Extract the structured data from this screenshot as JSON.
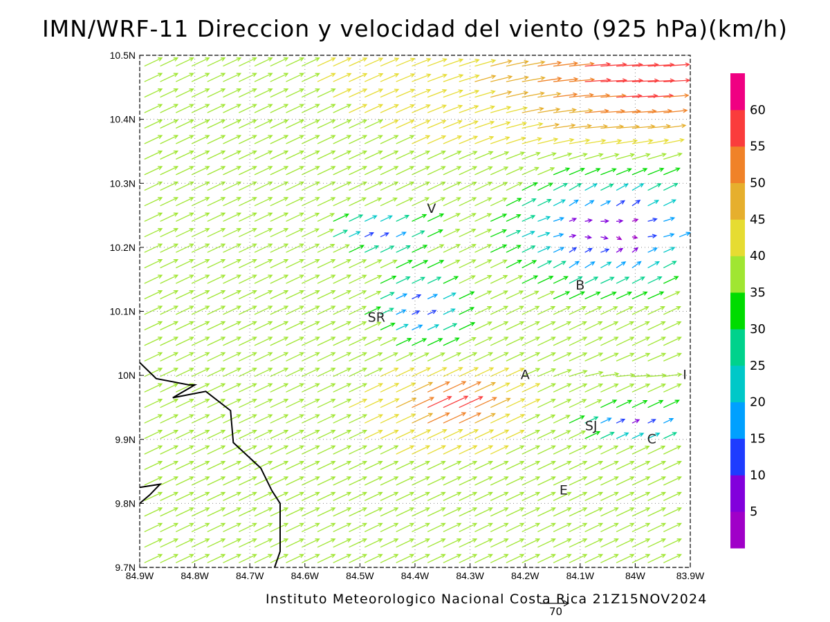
{
  "title": "IMN/WRF-11 Direccion y velocidad del viento (925 hPa)(km/h)",
  "credit": "Instituto Meteorologico Nacional Costa Rica 21Z15NOV2024",
  "reference_vector": {
    "value": "70"
  },
  "map": {
    "lon_range": [
      -84.9,
      -83.9
    ],
    "lat_range": [
      9.7,
      10.5
    ],
    "grid": "dotted",
    "lon_ticks": [
      {
        "lon": -84.9,
        "label": "84.9W"
      },
      {
        "lon": -84.8,
        "label": "84.8W"
      },
      {
        "lon": -84.7,
        "label": "84.7W"
      },
      {
        "lon": -84.6,
        "label": "84.6W"
      },
      {
        "lon": -84.5,
        "label": "84.5W"
      },
      {
        "lon": -84.4,
        "label": "84.4W"
      },
      {
        "lon": -84.3,
        "label": "84.3W"
      },
      {
        "lon": -84.2,
        "label": "84.2W"
      },
      {
        "lon": -84.1,
        "label": "84.1W"
      },
      {
        "lon": -84.0,
        "label": "84W"
      },
      {
        "lon": -83.9,
        "label": "83.9W"
      }
    ],
    "lat_ticks": [
      {
        "lat": 9.7,
        "label": "9.7N"
      },
      {
        "lat": 9.8,
        "label": "9.8N"
      },
      {
        "lat": 9.9,
        "label": "9.9N"
      },
      {
        "lat": 10.0,
        "label": "10N"
      },
      {
        "lat": 10.1,
        "label": "10.1N"
      },
      {
        "lat": 10.2,
        "label": "10.2N"
      },
      {
        "lat": 10.3,
        "label": "10.3N"
      },
      {
        "lat": 10.4,
        "label": "10.4N"
      },
      {
        "lat": 10.5,
        "label": "10.5N"
      }
    ],
    "places": [
      {
        "name": "V",
        "lon": -84.37,
        "lat": 10.26
      },
      {
        "name": "SR",
        "lon": -84.47,
        "lat": 10.09
      },
      {
        "name": "B",
        "lon": -84.1,
        "lat": 10.14
      },
      {
        "name": "A",
        "lon": -84.2,
        "lat": 10.0
      },
      {
        "name": "I",
        "lon": -83.91,
        "lat": 10.0
      },
      {
        "name": "SJ",
        "lon": -84.08,
        "lat": 9.92
      },
      {
        "name": "C",
        "lon": -83.97,
        "lat": 9.9
      },
      {
        "name": "E",
        "lon": -84.13,
        "lat": 9.82
      }
    ],
    "coastline": [
      {
        "lon": -84.9,
        "lat": 10.02
      },
      {
        "lon": -84.87,
        "lat": 9.995
      },
      {
        "lon": -84.81,
        "lat": 9.985
      },
      {
        "lon": -84.8,
        "lat": 9.985
      },
      {
        "lon": -84.84,
        "lat": 9.965
      },
      {
        "lon": -84.78,
        "lat": 9.975
      },
      {
        "lon": -84.735,
        "lat": 9.945
      },
      {
        "lon": -84.73,
        "lat": 9.895
      },
      {
        "lon": -84.705,
        "lat": 9.875
      },
      {
        "lon": -84.68,
        "lat": 9.855
      },
      {
        "lon": -84.66,
        "lat": 9.82
      },
      {
        "lon": -84.645,
        "lat": 9.8
      },
      {
        "lon": -84.645,
        "lat": 9.725
      },
      {
        "lon": -84.655,
        "lat": 9.7
      }
    ],
    "coastline_west": [
      {
        "lon": -84.9,
        "lat": 9.825
      },
      {
        "lon": -84.863,
        "lat": 9.83
      },
      {
        "lon": -84.882,
        "lat": 9.813
      },
      {
        "lon": -84.9,
        "lat": 9.8
      }
    ]
  },
  "colorbar": {
    "ticks": [
      "5",
      "10",
      "15",
      "20",
      "25",
      "30",
      "35",
      "40",
      "45",
      "50",
      "55",
      "60"
    ],
    "colors": [
      "#a000c8",
      "#8200dc",
      "#1e3cff",
      "#00a0ff",
      "#00c8c8",
      "#00d28c",
      "#00dc00",
      "#a0e632",
      "#e6dc32",
      "#e6af2d",
      "#f08228",
      "#fa3c3c",
      "#f00082"
    ]
  },
  "wind_field": {
    "units": "km/h",
    "note": "approximate regional pattern: SW flow ~40-50 km/h over west/south, strong W flow ~55-65 km/h in north-east, weak variable winds <15 km/h in eastern valleys"
  }
}
